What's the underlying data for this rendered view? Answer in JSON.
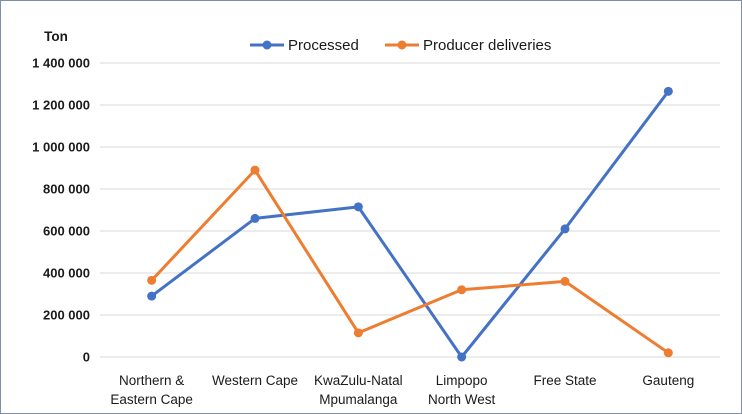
{
  "chart_data": {
    "type": "line",
    "ylabel": "Ton",
    "categories": [
      [
        "Northern &",
        "Eastern Cape"
      ],
      [
        "Western Cape"
      ],
      [
        "KwaZulu-Natal",
        "Mpumalanga"
      ],
      [
        "Limpopo",
        "North West"
      ],
      [
        "Free State"
      ],
      [
        "Gauteng"
      ]
    ],
    "ylim": [
      0,
      1400000
    ],
    "yticks": [
      0,
      200000,
      400000,
      600000,
      800000,
      1000000,
      1200000,
      1400000
    ],
    "ytick_labels": [
      "0",
      "200 000",
      "400 000",
      "600 000",
      "800 000",
      "1 000 000",
      "1 200 000",
      "1 400 000"
    ],
    "grid": true,
    "legend": "top-center",
    "series": [
      {
        "name": "Processed",
        "color": "#4472c4",
        "values": [
          290000,
          660000,
          715000,
          0,
          610000,
          1265000
        ]
      },
      {
        "name": "Producer deliveries",
        "color": "#ed7d31",
        "values": [
          365000,
          890000,
          115000,
          320000,
          360000,
          20000
        ]
      }
    ]
  }
}
